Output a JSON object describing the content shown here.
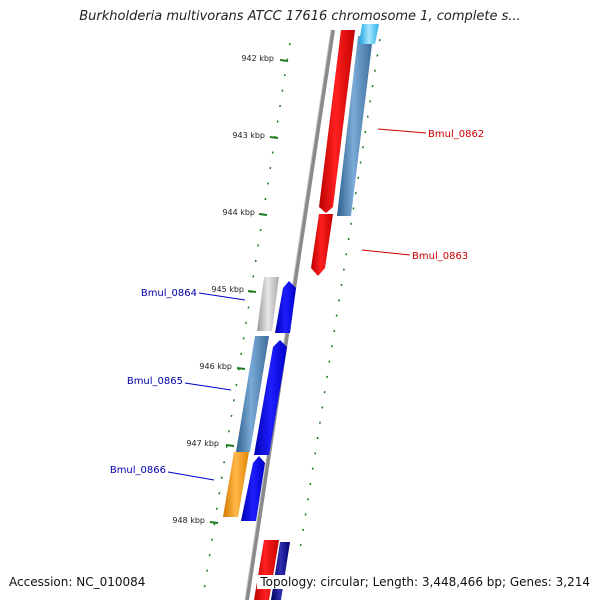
{
  "title": "Burkholderia multivorans ATCC 17616 chromosome 1, complete s...",
  "footer": {
    "accession_label": "Accession:",
    "accession": "NC_010084",
    "topology_text": "Topology: circular; Length: 3,448,466 bp; Genes: 3,214"
  },
  "ruler": [
    "942 kbp",
    "943 kbp",
    "944 kbp",
    "945 kbp",
    "946 kbp",
    "947 kbp",
    "948 kbp"
  ],
  "genes": [
    {
      "name": "Bmul_0862",
      "color": "#cc0000"
    },
    {
      "name": "Bmul_0863",
      "color": "#cc0000"
    },
    {
      "name": "Bmul_0864",
      "color": "#0000aa"
    },
    {
      "name": "Bmul_0865",
      "color": "#0000aa"
    },
    {
      "name": "Bmul_0866",
      "color": "#0000aa"
    }
  ],
  "colors": {
    "backbone": "#888888",
    "tick": "#1f7a1f",
    "forward_red": "#ee0000",
    "steel_blue": "#4a7fb0",
    "blue": "#0000ee",
    "gray": "#b8b8b8",
    "orange": "#f39a10",
    "cyan": "#33bbee",
    "navy": "#000080"
  }
}
